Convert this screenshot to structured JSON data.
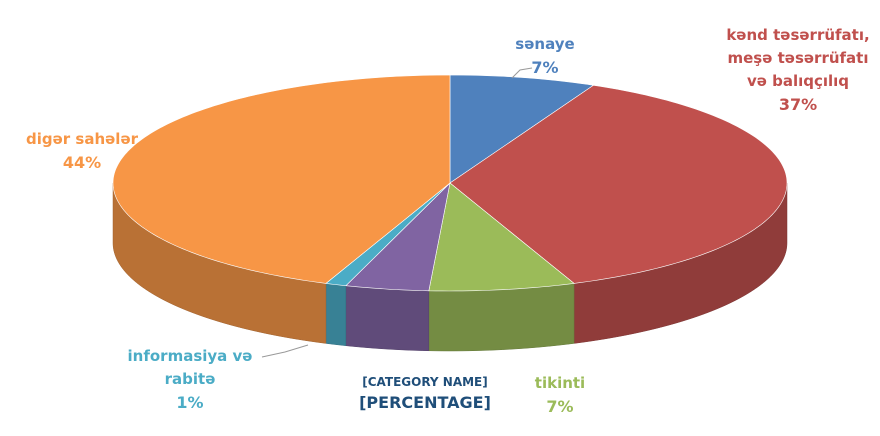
{
  "chart_data": {
    "type": "pie3d",
    "categories": [
      "sənaye",
      "kənd təsərrüfatı, meşə təsərrüfatı və balıqçılıq",
      "tikinti",
      "[CATEGORY NAME]",
      "informasiya və rabitə",
      "digər sahələr"
    ],
    "values": [
      7,
      37,
      7,
      4,
      1,
      44
    ],
    "value_labels": [
      "7%",
      "37%",
      "7%",
      "[PERCENTAGE]",
      "1%",
      "44%"
    ],
    "colors": [
      "#4f81bd",
      "#c0504d",
      "#9bbb59",
      "#8064a2",
      "#4bacc6",
      "#f79646"
    ]
  }
}
